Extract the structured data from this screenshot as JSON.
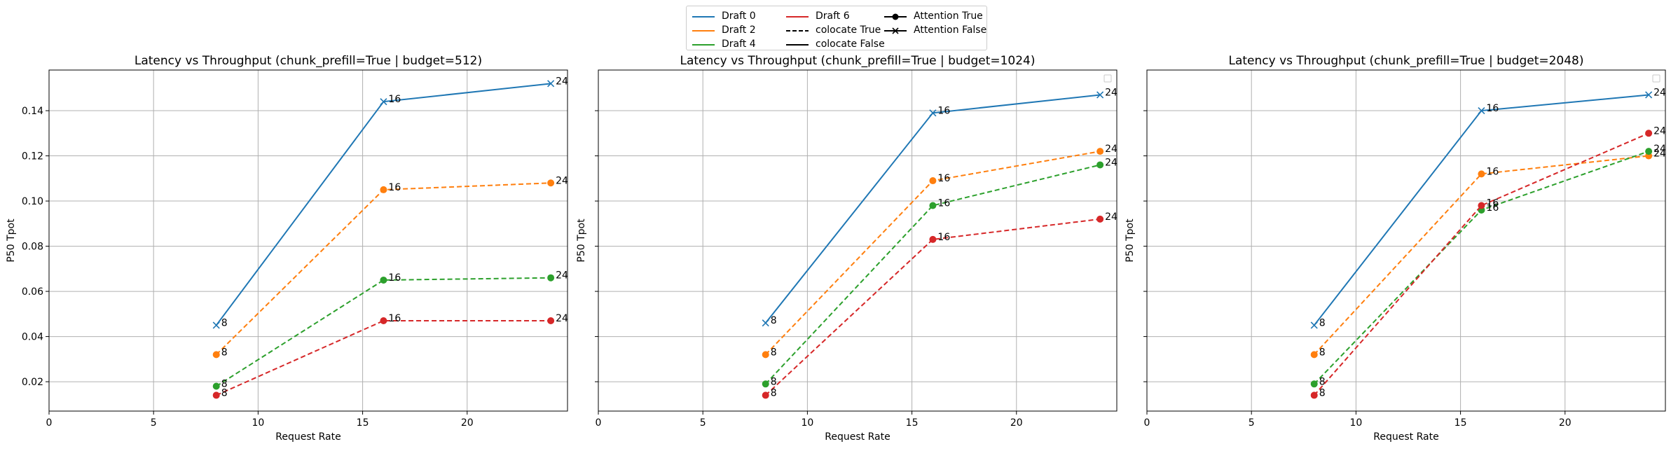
{
  "chart_data": [
    {
      "type": "line",
      "title": "Latency vs Throughput (chunk_prefill=True | budget=512)",
      "xlabel": "Request Rate",
      "ylabel": "P50 Tpot",
      "xlim": [
        0,
        24.8
      ],
      "ylim": [
        0.007,
        0.158
      ],
      "xticks": [
        0,
        5,
        10,
        15,
        20
      ],
      "yticks": [
        0.02,
        0.04,
        0.06,
        0.08,
        0.1,
        0.12,
        0.14
      ],
      "ytick_labels": [
        "0.02",
        "0.04",
        "0.06",
        "0.08",
        "0.10",
        "0.12",
        "0.14"
      ],
      "grid": true,
      "series": [
        {
          "name": "Draft 0",
          "color": "#1f77b4",
          "dash": "solid",
          "marker": "x",
          "x": [
            8,
            16,
            24
          ],
          "y": [
            0.045,
            0.144,
            0.152
          ],
          "labels": [
            "8",
            "16",
            "24"
          ]
        },
        {
          "name": "Draft 2",
          "color": "#ff7f0e",
          "dash": "dashed",
          "marker": "o",
          "x": [
            8,
            16,
            24
          ],
          "y": [
            0.032,
            0.105,
            0.108
          ],
          "labels": [
            "8",
            "16",
            "24"
          ]
        },
        {
          "name": "Draft 4",
          "color": "#2ca02c",
          "dash": "dashed",
          "marker": "o",
          "x": [
            8,
            16,
            24
          ],
          "y": [
            0.018,
            0.065,
            0.066
          ],
          "labels": [
            "8",
            "16",
            "24"
          ]
        },
        {
          "name": "Draft 6",
          "color": "#d62728",
          "dash": "dashed",
          "marker": "o",
          "x": [
            8,
            16,
            24
          ],
          "y": [
            0.014,
            0.047,
            0.047
          ],
          "labels": [
            "8",
            "16",
            "24"
          ]
        }
      ]
    },
    {
      "type": "line",
      "title": "Latency vs Throughput (chunk_prefill=True | budget=1024)",
      "xlabel": "Request Rate",
      "ylabel": "P50 Tpot",
      "xlim": [
        0,
        24.8
      ],
      "ylim": [
        0.007,
        0.158
      ],
      "xticks": [
        0,
        5,
        10,
        15,
        20
      ],
      "grid": true,
      "series": [
        {
          "name": "Draft 0",
          "color": "#1f77b4",
          "dash": "solid",
          "marker": "x",
          "x": [
            8,
            16,
            24
          ],
          "y": [
            0.046,
            0.139,
            0.147
          ],
          "labels": [
            "8",
            "16",
            "24"
          ]
        },
        {
          "name": "Draft 2",
          "color": "#ff7f0e",
          "dash": "dashed",
          "marker": "o",
          "x": [
            8,
            16,
            24
          ],
          "y": [
            0.032,
            0.109,
            0.122
          ],
          "labels": [
            "8",
            "16",
            "24"
          ]
        },
        {
          "name": "Draft 4",
          "color": "#2ca02c",
          "dash": "dashed",
          "marker": "o",
          "x": [
            8,
            16,
            24
          ],
          "y": [
            0.019,
            0.098,
            0.116
          ],
          "labels": [
            "8",
            "16",
            "24"
          ]
        },
        {
          "name": "Draft 6",
          "color": "#d62728",
          "dash": "dashed",
          "marker": "o",
          "x": [
            8,
            16,
            24
          ],
          "y": [
            0.014,
            0.083,
            0.092
          ],
          "labels": [
            "8",
            "16",
            "24"
          ]
        }
      ]
    },
    {
      "type": "line",
      "title": "Latency vs Throughput (chunk_prefill=True | budget=2048)",
      "xlabel": "Request Rate",
      "ylabel": "P50 Tpot",
      "xlim": [
        0,
        24.8
      ],
      "ylim": [
        0.007,
        0.158
      ],
      "xticks": [
        0,
        5,
        10,
        15,
        20
      ],
      "grid": true,
      "series": [
        {
          "name": "Draft 0",
          "color": "#1f77b4",
          "dash": "solid",
          "marker": "x",
          "x": [
            8,
            16,
            24
          ],
          "y": [
            0.045,
            0.14,
            0.147
          ],
          "labels": [
            "8",
            "16",
            "24"
          ]
        },
        {
          "name": "Draft 2",
          "color": "#ff7f0e",
          "dash": "dashed",
          "marker": "o",
          "x": [
            8,
            16,
            24
          ],
          "y": [
            0.032,
            0.112,
            0.12
          ],
          "labels": [
            "8",
            "16",
            "24"
          ]
        },
        {
          "name": "Draft 4",
          "color": "#2ca02c",
          "dash": "dashed",
          "marker": "o",
          "x": [
            8,
            16,
            24
          ],
          "y": [
            0.019,
            0.096,
            0.122
          ],
          "labels": [
            "8",
            "16",
            "24"
          ]
        },
        {
          "name": "Draft 6",
          "color": "#d62728",
          "dash": "dashed",
          "marker": "o",
          "x": [
            8,
            16,
            24
          ],
          "y": [
            0.014,
            0.098,
            0.13
          ],
          "labels": [
            "8",
            "16",
            "24"
          ]
        }
      ]
    }
  ],
  "legend": {
    "placement": "top-center",
    "items": [
      {
        "label": "Draft 0",
        "color": "#1f77b4",
        "dash": "solid",
        "marker": "none"
      },
      {
        "label": "Draft 2",
        "color": "#ff7f0e",
        "dash": "solid",
        "marker": "none"
      },
      {
        "label": "Draft 4",
        "color": "#2ca02c",
        "dash": "solid",
        "marker": "none"
      },
      {
        "label": "Draft 6",
        "color": "#d62728",
        "dash": "solid",
        "marker": "none"
      },
      {
        "label": "colocate True",
        "color": "#000000",
        "dash": "dashed",
        "marker": "none"
      },
      {
        "label": "colocate False",
        "color": "#000000",
        "dash": "solid",
        "marker": "none"
      },
      {
        "label": "Attention True",
        "color": "#000000",
        "dash": "solid",
        "marker": "o"
      },
      {
        "label": "Attention False",
        "color": "#000000",
        "dash": "solid",
        "marker": "x"
      }
    ]
  }
}
